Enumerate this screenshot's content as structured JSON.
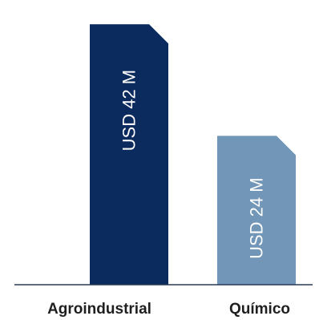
{
  "chart_data": {
    "type": "bar",
    "categories": [
      "Agroindustrial",
      "Químico"
    ],
    "values": [
      42,
      24
    ],
    "value_labels": [
      "USD 42 M",
      "USD 24 M"
    ],
    "unit": "USD M",
    "ylim": [
      0,
      45
    ],
    "colors": [
      "#0b2a5e",
      "#7196b7"
    ],
    "grid": false,
    "legend": "none",
    "title": "",
    "xlabel": "",
    "ylabel": ""
  }
}
